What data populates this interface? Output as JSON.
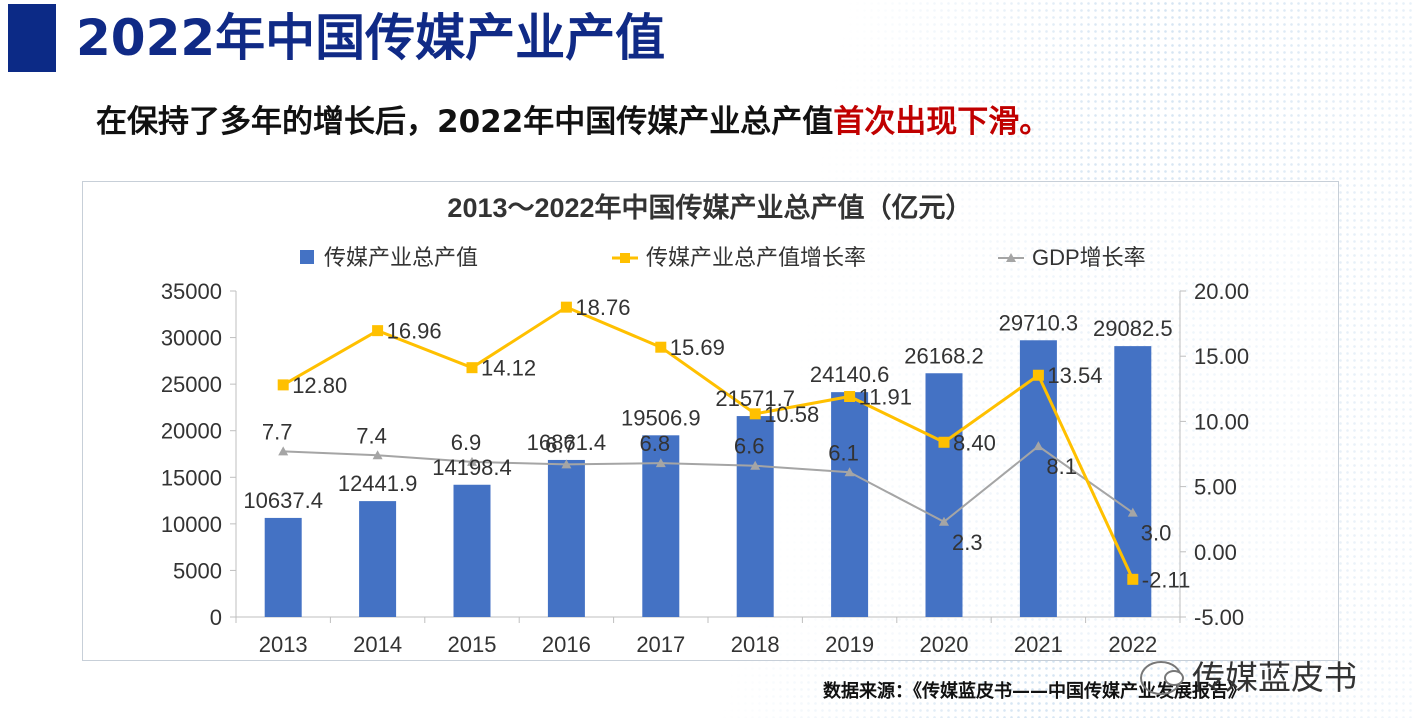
{
  "page": {
    "title": "2022年中国传媒产业产值",
    "subtitle_prefix": "在保持了多年的增长后，2022年中国传媒产业总产值",
    "subtitle_highlight": "首次出现下滑。",
    "source": "数据来源：《传媒蓝皮书——中国传媒产业发展报告》",
    "logo_text": "传媒蓝皮书"
  },
  "colors": {
    "title": "#102a86",
    "bar": "#4472c4",
    "media_growth": "#ffc000",
    "gdp_growth": "#a5a5a5",
    "highlight": "#c00000"
  },
  "chart_data": {
    "type": "bar",
    "title": "2013～2022年中国传媒产业总产值（亿元）",
    "legend_position": "top",
    "categories": [
      "2013",
      "2014",
      "2015",
      "2016",
      "2017",
      "2018",
      "2019",
      "2020",
      "2021",
      "2022"
    ],
    "series": [
      {
        "name": "传媒产业总产值",
        "type": "bar",
        "axis": "left",
        "values": [
          10637.4,
          12441.9,
          14198.4,
          16861.4,
          19506.9,
          21571.7,
          24140.6,
          26168.2,
          29710.3,
          29082.5
        ],
        "labels": [
          "10637.4",
          "12441.9",
          "14198.4",
          "16861.4",
          "19506.9",
          "21571.7",
          "24140.6",
          "26168.2",
          "29710.3",
          "29082.5"
        ]
      },
      {
        "name": "传媒产业总产值增长率",
        "type": "line",
        "axis": "right",
        "values": [
          12.8,
          16.96,
          14.12,
          18.76,
          15.69,
          10.58,
          11.91,
          8.4,
          13.54,
          -2.11
        ],
        "labels": [
          "12.80",
          "16.96",
          "14.12",
          "18.76",
          "15.69",
          "10.58",
          "11.91",
          "8.40",
          "13.54",
          "-2.11"
        ]
      },
      {
        "name": "GDP增长率",
        "type": "line",
        "axis": "right",
        "values": [
          7.7,
          7.4,
          6.9,
          6.7,
          6.8,
          6.6,
          6.1,
          2.3,
          8.1,
          3.0
        ],
        "labels": [
          "7.7",
          "7.4",
          "6.9",
          "6.7",
          "6.8",
          "6.6",
          "6.1",
          "2.3",
          "8.1",
          "3.0"
        ]
      }
    ],
    "y_left": {
      "min": 0,
      "max": 35000,
      "step": 5000,
      "ticks": [
        "0",
        "5000",
        "10000",
        "15000",
        "20000",
        "25000",
        "30000",
        "35000"
      ]
    },
    "y_right": {
      "min": -5,
      "max": 20,
      "step": 5,
      "ticks": [
        "-5.00",
        "0.00",
        "5.00",
        "10.00",
        "15.00",
        "20.00"
      ]
    },
    "grid": false
  }
}
